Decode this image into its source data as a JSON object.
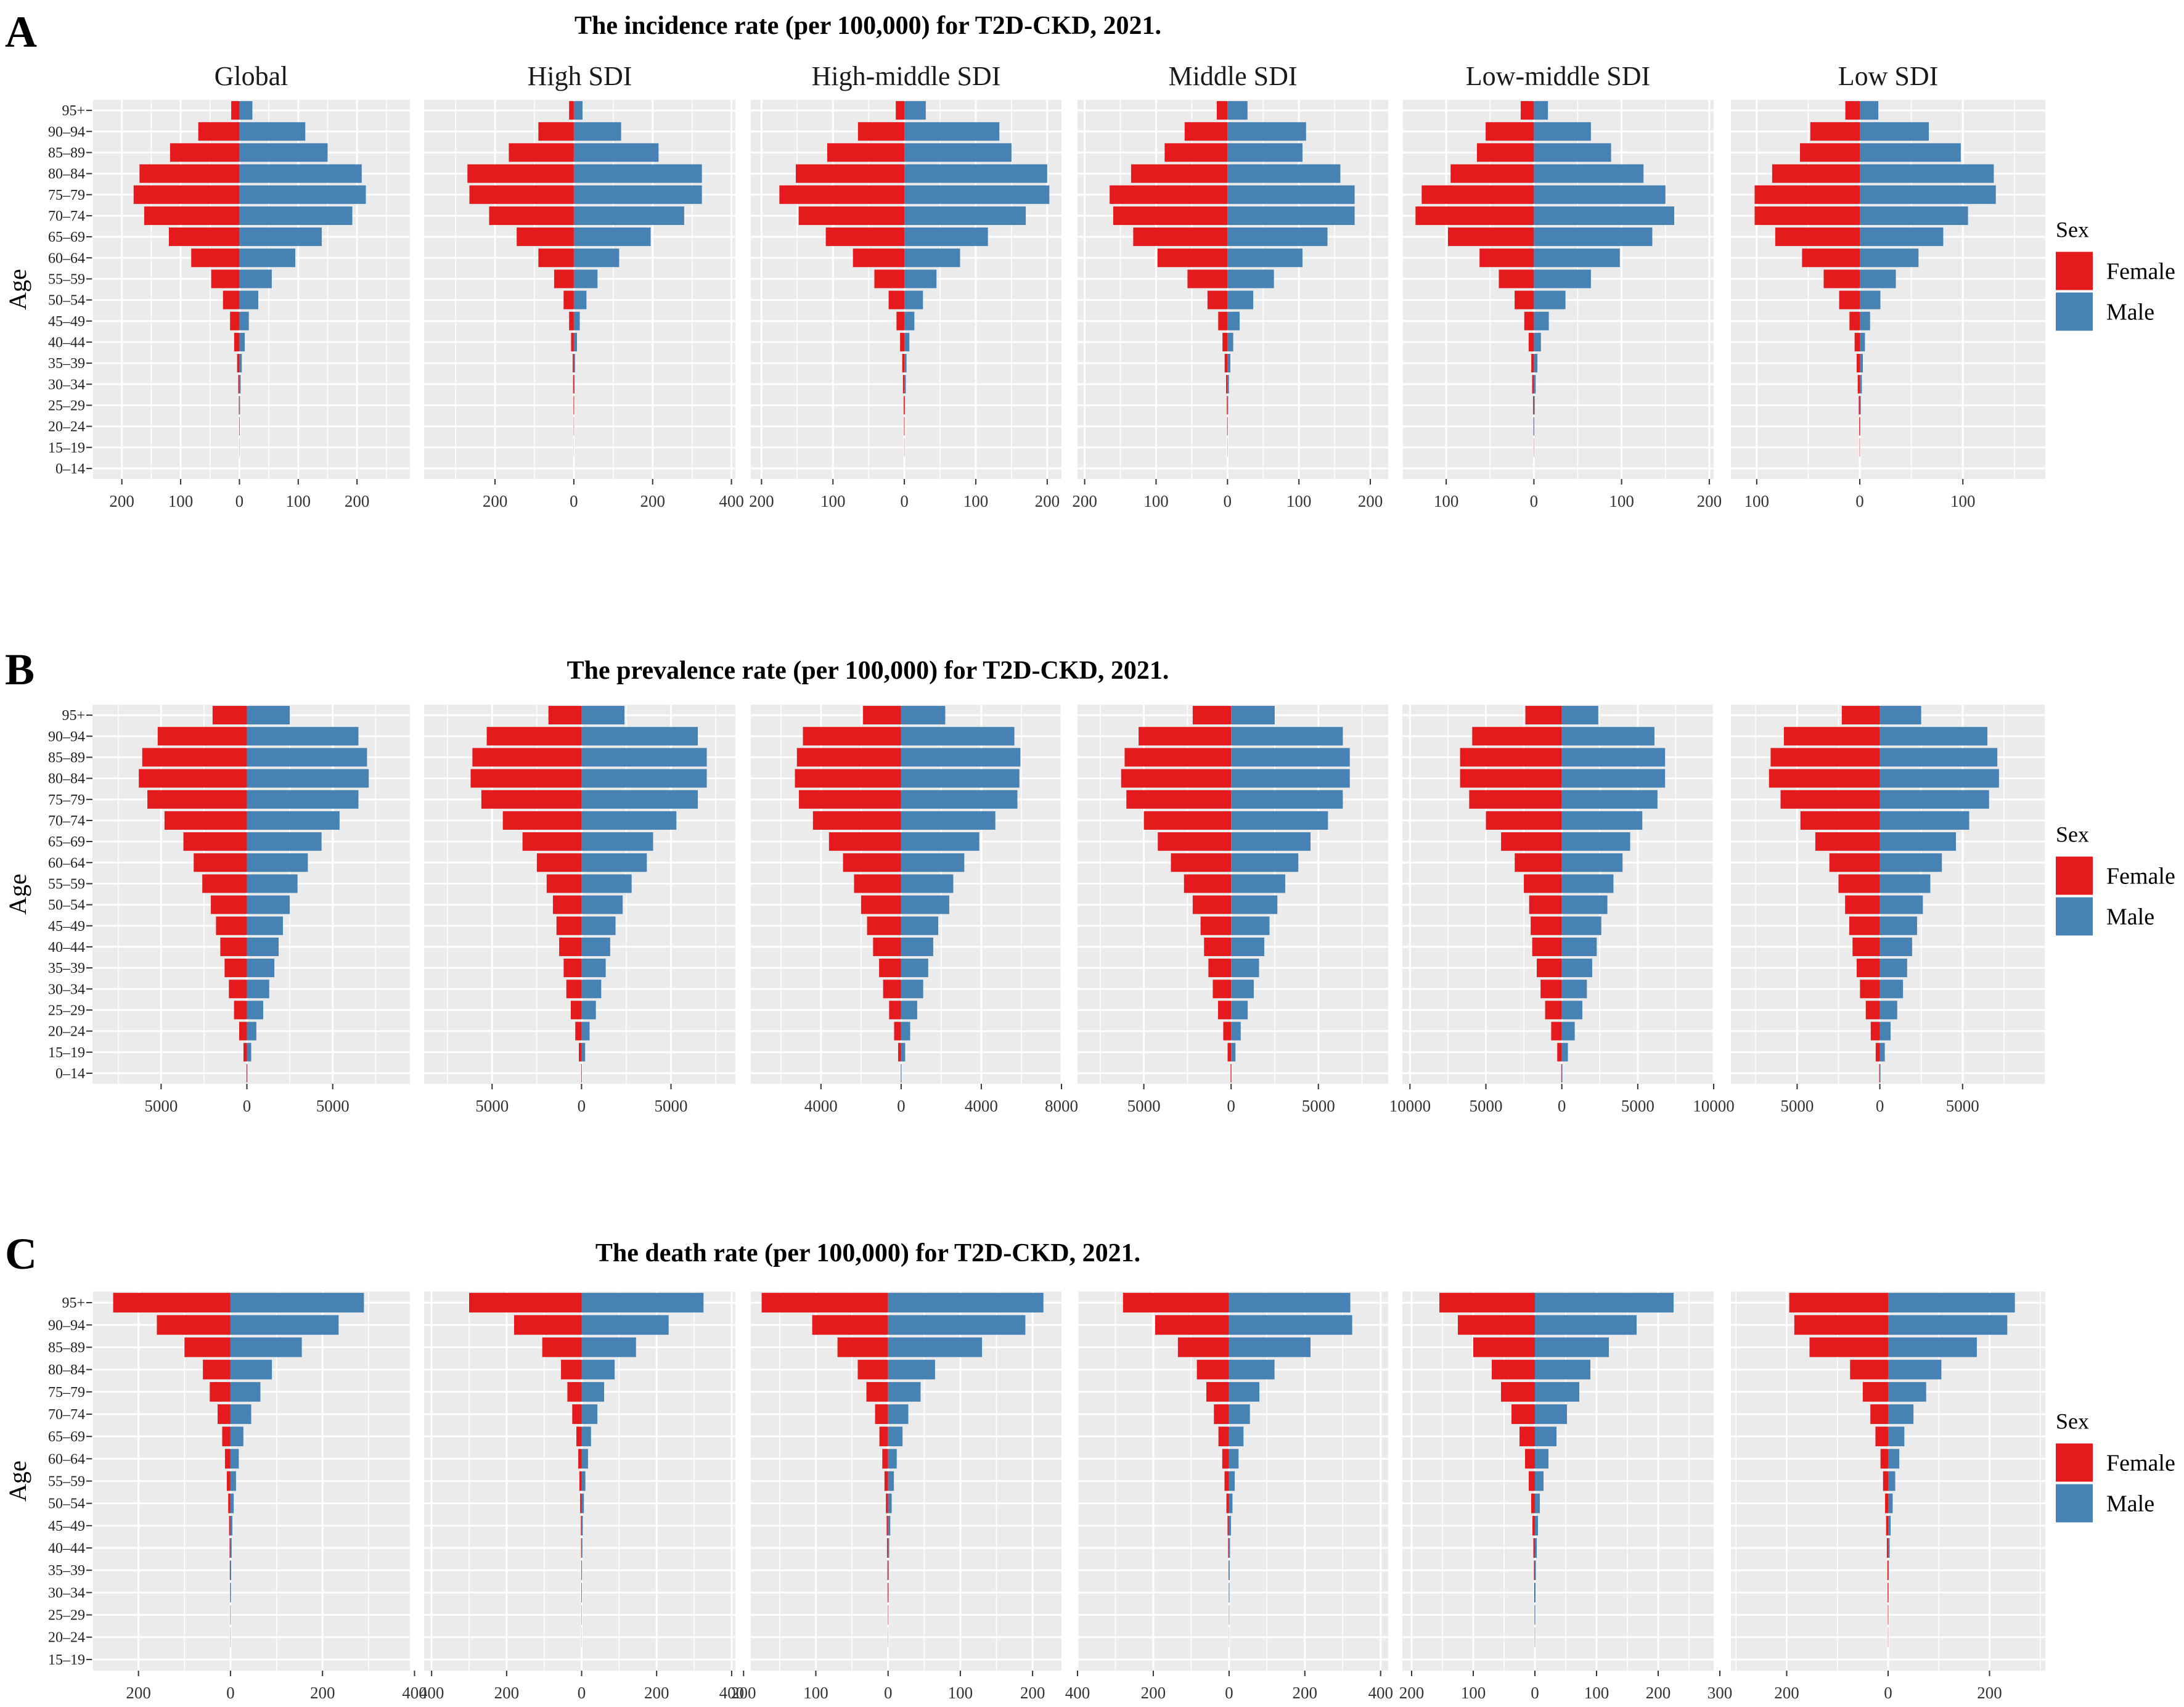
{
  "colors": {
    "female": "#E41A1C",
    "male": "#4682B4",
    "panel": "#EBEBEB",
    "grid": "#FFFFFF"
  },
  "legend": {
    "title": "Sex",
    "items": [
      "Female",
      "Male"
    ]
  },
  "axis": {
    "ylabel": "Age"
  },
  "facets": [
    "Global",
    "High SDI",
    "High-middle SDI",
    "Middle SDI",
    "Low-middle SDI",
    "Low SDI"
  ],
  "chart_data": [
    {
      "type": "bar",
      "letter": "A",
      "title": "The incidence rate (per 100,000) for T2D-CKD, 2021.",
      "xlabel": "",
      "ylabel": "Age",
      "categories": [
        "0–14",
        "15–19",
        "20–24",
        "25–29",
        "30–34",
        "35–39",
        "40–44",
        "45–49",
        "50–54",
        "55–59",
        "60–64",
        "65–69",
        "70–74",
        "75–79",
        "80–84",
        "85–89",
        "90–94",
        "95+"
      ],
      "panels": [
        {
          "name": "Global",
          "xlim": [
            -250,
            290
          ],
          "ticks": [
            -200,
            -100,
            0,
            100,
            200
          ],
          "tick_labels": [
            "200",
            "100",
            "0",
            "100",
            "200"
          ],
          "female": [
            0,
            0.2,
            0.5,
            1,
            2,
            4,
            9,
            16,
            28,
            48,
            82,
            120,
            162,
            180,
            170,
            118,
            70,
            14
          ],
          "male": [
            0,
            0.2,
            0.5,
            1,
            2,
            4,
            9,
            16,
            32,
            55,
            95,
            140,
            192,
            215,
            208,
            150,
            112,
            22
          ]
        },
        {
          "name": "High SDI",
          "xlim": [
            -380,
            410
          ],
          "ticks": [
            -200,
            0,
            200,
            400
          ],
          "tick_labels": [
            "200",
            "0",
            "200",
            "400"
          ],
          "female": [
            0,
            0.2,
            0.5,
            1,
            2,
            3,
            7,
            12,
            26,
            50,
            90,
            145,
            215,
            265,
            270,
            165,
            90,
            12
          ],
          "male": [
            0,
            0.2,
            0.5,
            1,
            2,
            3,
            8,
            15,
            32,
            60,
            115,
            195,
            280,
            325,
            325,
            215,
            120,
            22
          ]
        },
        {
          "name": "High-middle SDI",
          "xlim": [
            -215,
            220
          ],
          "ticks": [
            -200,
            -100,
            0,
            100,
            200
          ],
          "tick_labels": [
            "200",
            "100",
            "0",
            "100",
            "200"
          ],
          "female": [
            0,
            0.2,
            0.5,
            1,
            2,
            3,
            6,
            11,
            22,
            42,
            72,
            110,
            148,
            175,
            152,
            108,
            65,
            12
          ],
          "male": [
            0,
            0.2,
            0.5,
            1,
            2,
            3,
            7,
            14,
            26,
            45,
            78,
            117,
            170,
            203,
            200,
            150,
            133,
            30
          ]
        },
        {
          "name": "Middle SDI",
          "xlim": [
            -210,
            225
          ],
          "ticks": [
            -200,
            -100,
            0,
            100,
            200
          ],
          "tick_labels": [
            "200",
            "100",
            "0",
            "100",
            "200"
          ],
          "female": [
            0,
            0.2,
            0.5,
            1,
            2,
            4,
            7,
            13,
            28,
            56,
            98,
            132,
            160,
            165,
            135,
            88,
            60,
            15
          ],
          "male": [
            0,
            0.2,
            0.5,
            1,
            2,
            4,
            8,
            17,
            36,
            65,
            105,
            140,
            178,
            178,
            158,
            105,
            110,
            28
          ]
        },
        {
          "name": "Low-middle SDI",
          "xlim": [
            -150,
            205
          ],
          "ticks": [
            -100,
            0,
            100,
            200
          ],
          "tick_labels": [
            "100",
            "0",
            "100",
            "200"
          ],
          "female": [
            0,
            0.2,
            0.5,
            1,
            2,
            3,
            6,
            11,
            22,
            40,
            62,
            98,
            135,
            128,
            95,
            65,
            55,
            15
          ],
          "male": [
            0,
            0.2,
            0.5,
            1,
            2,
            4,
            8,
            17,
            36,
            65,
            98,
            135,
            160,
            150,
            125,
            88,
            65,
            16
          ]
        },
        {
          "name": "Low SDI",
          "xlim": [
            -125,
            180
          ],
          "ticks": [
            -100,
            0,
            100
          ],
          "tick_labels": [
            "100",
            "0",
            "100"
          ],
          "female": [
            0,
            0.2,
            0.5,
            1,
            2,
            3,
            5,
            10,
            20,
            35,
            56,
            82,
            102,
            102,
            85,
            58,
            48,
            14
          ],
          "male": [
            0,
            0.2,
            0.5,
            1,
            2,
            3,
            5,
            10,
            20,
            35,
            57,
            81,
            105,
            132,
            130,
            98,
            67,
            18
          ]
        }
      ]
    },
    {
      "type": "bar",
      "letter": "B",
      "title": "The prevalence rate (per 100,000) for T2D-CKD, 2021.",
      "xlabel": "",
      "ylabel": "Age",
      "categories": [
        "0–14",
        "15–19",
        "20–24",
        "25–29",
        "30–34",
        "35–39",
        "40–44",
        "45–49",
        "50–54",
        "55–59",
        "60–64",
        "65–69",
        "70–74",
        "75–79",
        "80–84",
        "85–89",
        "90–94",
        "95+"
      ],
      "panels": [
        {
          "name": "Global",
          "xlim": [
            -9000,
            9500
          ],
          "ticks": [
            -5000,
            0,
            5000
          ],
          "tick_labels": [
            "5000",
            "0",
            "5000"
          ],
          "female": [
            30,
            200,
            450,
            750,
            1050,
            1300,
            1550,
            1800,
            2100,
            2600,
            3100,
            3700,
            4800,
            5800,
            6300,
            6100,
            5200,
            2000
          ],
          "male": [
            30,
            250,
            550,
            950,
            1300,
            1600,
            1850,
            2100,
            2500,
            2950,
            3550,
            4350,
            5400,
            6500,
            7100,
            7000,
            6500,
            2500
          ]
        },
        {
          "name": "High SDI",
          "xlim": [
            -8800,
            8600
          ],
          "ticks": [
            -5000,
            0,
            5000
          ],
          "tick_labels": [
            "5000",
            "0",
            "5000"
          ],
          "female": [
            20,
            150,
            350,
            600,
            850,
            1000,
            1250,
            1400,
            1600,
            1950,
            2500,
            3300,
            4400,
            5600,
            6200,
            6100,
            5300,
            1850
          ],
          "male": [
            20,
            200,
            450,
            800,
            1100,
            1350,
            1600,
            1900,
            2300,
            2800,
            3650,
            4000,
            5300,
            6500,
            7000,
            7000,
            6500,
            2400
          ]
        },
        {
          "name": "High-middle SDI",
          "xlim": [
            -7500,
            8000
          ],
          "ticks": [
            -4000,
            0,
            4000,
            8000
          ],
          "tick_labels": [
            "4000",
            "0",
            "4000",
            "8000"
          ],
          "female": [
            20,
            150,
            350,
            600,
            900,
            1100,
            1400,
            1700,
            2000,
            2350,
            2900,
            3600,
            4400,
            5100,
            5300,
            5200,
            4900,
            1900
          ],
          "male": [
            20,
            200,
            450,
            800,
            1100,
            1350,
            1600,
            1850,
            2400,
            2600,
            3150,
            3900,
            4700,
            5800,
            5900,
            5950,
            5650,
            2200
          ]
        },
        {
          "name": "Middle SDI",
          "xlim": [
            -8800,
            9000
          ],
          "ticks": [
            -5000,
            0,
            5000
          ],
          "tick_labels": [
            "5000",
            "0",
            "5000"
          ],
          "female": [
            30,
            200,
            450,
            750,
            1050,
            1300,
            1550,
            1750,
            2200,
            2700,
            3450,
            4200,
            5000,
            6000,
            6300,
            6100,
            5300,
            2200
          ],
          "male": [
            30,
            250,
            550,
            950,
            1300,
            1600,
            1900,
            2200,
            2650,
            3100,
            3850,
            4550,
            5550,
            6400,
            6800,
            6800,
            6400,
            2500
          ]
        },
        {
          "name": "Low-middle SDI",
          "xlim": [
            -10500,
            10000
          ],
          "ticks": [
            -10000,
            -5000,
            0,
            5000,
            10000
          ],
          "tick_labels": [
            "10000",
            "5000",
            "0",
            "5000",
            "10000"
          ],
          "female": [
            40,
            300,
            700,
            1100,
            1400,
            1650,
            1950,
            2050,
            2150,
            2500,
            3100,
            4000,
            5000,
            6100,
            6700,
            6700,
            5900,
            2400
          ],
          "male": [
            40,
            400,
            850,
            1350,
            1650,
            2000,
            2300,
            2600,
            3000,
            3400,
            4000,
            4500,
            5300,
            6300,
            6800,
            6800,
            6100,
            2400
          ]
        },
        {
          "name": "Low SDI",
          "xlim": [
            -9000,
            10000
          ],
          "ticks": [
            -5000,
            0,
            5000
          ],
          "tick_labels": [
            "5000",
            "0",
            "5000"
          ],
          "female": [
            40,
            250,
            550,
            850,
            1200,
            1400,
            1650,
            1850,
            2100,
            2500,
            3050,
            3900,
            4800,
            6000,
            6700,
            6600,
            5800,
            2300
          ],
          "male": [
            40,
            300,
            650,
            1050,
            1400,
            1650,
            1950,
            2250,
            2600,
            3050,
            3750,
            4600,
            5400,
            6600,
            7200,
            7100,
            6500,
            2500
          ]
        }
      ]
    },
    {
      "type": "bar",
      "letter": "C",
      "title": "The death rate (per 100,000) for T2D-CKD, 2021.",
      "xlabel": "",
      "ylabel": "Age",
      "categories": [
        "15–19",
        "20–24",
        "25–29",
        "30–34",
        "35–39",
        "40–44",
        "45–49",
        "50–54",
        "55–59",
        "60–64",
        "65–69",
        "70–74",
        "75–79",
        "80–84",
        "85–89",
        "90–94",
        "95+"
      ],
      "panels": [
        {
          "name": "Global",
          "xlim": [
            -300,
            390
          ],
          "ticks": [
            -200,
            0,
            200,
            400
          ],
          "tick_labels": [
            "200",
            "0",
            "200",
            "400"
          ],
          "female": [
            0,
            0.3,
            0.5,
            1,
            1.5,
            2,
            3,
            5,
            8,
            12,
            18,
            28,
            45,
            60,
            100,
            160,
            255
          ],
          "male": [
            0,
            0.3,
            0.5,
            1,
            1.5,
            2.5,
            4,
            7,
            12,
            18,
            28,
            45,
            65,
            90,
            155,
            235,
            290
          ]
        },
        {
          "name": "High SDI",
          "xlim": [
            -420,
            410
          ],
          "ticks": [
            -400,
            -200,
            0,
            200,
            400
          ],
          "tick_labels": [
            "400",
            "200",
            "0",
            "200",
            "400"
          ],
          "female": [
            0,
            0.2,
            0.4,
            0.8,
            1,
            1.5,
            2,
            4,
            6,
            9,
            14,
            25,
            38,
            55,
            105,
            180,
            300
          ],
          "male": [
            0,
            0.2,
            0.4,
            0.8,
            1,
            2,
            3,
            6,
            10,
            17,
            25,
            42,
            60,
            88,
            145,
            232,
            325
          ]
        },
        {
          "name": "High-middle SDI",
          "xlim": [
            -190,
            240
          ],
          "ticks": [
            -200,
            -100,
            0,
            100,
            200
          ],
          "tick_labels": [
            "200",
            "100",
            "0",
            "100",
            "200"
          ],
          "female": [
            0,
            0.2,
            0.4,
            0.8,
            1,
            1.5,
            2,
            3,
            5,
            8,
            12,
            18,
            30,
            42,
            70,
            105,
            175
          ],
          "male": [
            0,
            0.2,
            0.4,
            0.8,
            1,
            1.5,
            3,
            5,
            8,
            12,
            20,
            28,
            45,
            65,
            130,
            190,
            215
          ]
        },
        {
          "name": "Middle SDI",
          "xlim": [
            -400,
            420
          ],
          "ticks": [
            -400,
            -200,
            0,
            200,
            400
          ],
          "tick_labels": [
            "400",
            "200",
            "0",
            "200",
            "400"
          ],
          "female": [
            0,
            0.3,
            0.6,
            1,
            1.5,
            2.5,
            4,
            7,
            12,
            18,
            28,
            40,
            60,
            85,
            135,
            195,
            280
          ],
          "male": [
            0,
            0.3,
            0.6,
            1,
            1.5,
            2.5,
            5,
            9,
            15,
            25,
            38,
            55,
            80,
            120,
            215,
            325,
            320
          ]
        },
        {
          "name": "Low-middle SDI",
          "xlim": [
            -215,
            290
          ],
          "ticks": [
            -200,
            -100,
            0,
            100,
            200,
            300
          ],
          "tick_labels": [
            "200",
            "100",
            "0",
            "100",
            "200",
            "300"
          ],
          "female": [
            0,
            0.3,
            0.6,
            1,
            1.5,
            2.5,
            4,
            6,
            10,
            16,
            25,
            38,
            55,
            70,
            100,
            125,
            155
          ],
          "male": [
            0,
            0.3,
            0.6,
            1,
            1.5,
            3,
            5,
            8,
            14,
            22,
            35,
            52,
            72,
            90,
            120,
            165,
            225
          ]
        },
        {
          "name": "Low SDI",
          "xlim": [
            -310,
            310
          ],
          "ticks": [
            -200,
            0,
            200
          ],
          "tick_labels": [
            "200",
            "0",
            "200"
          ],
          "female": [
            0,
            0.3,
            0.6,
            1,
            1.5,
            2.5,
            4,
            6,
            10,
            15,
            25,
            35,
            50,
            75,
            155,
            185,
            195
          ],
          "male": [
            0,
            0.3,
            0.6,
            1,
            1.5,
            3,
            5,
            9,
            14,
            22,
            32,
            50,
            75,
            105,
            175,
            235,
            250
          ]
        }
      ]
    }
  ]
}
